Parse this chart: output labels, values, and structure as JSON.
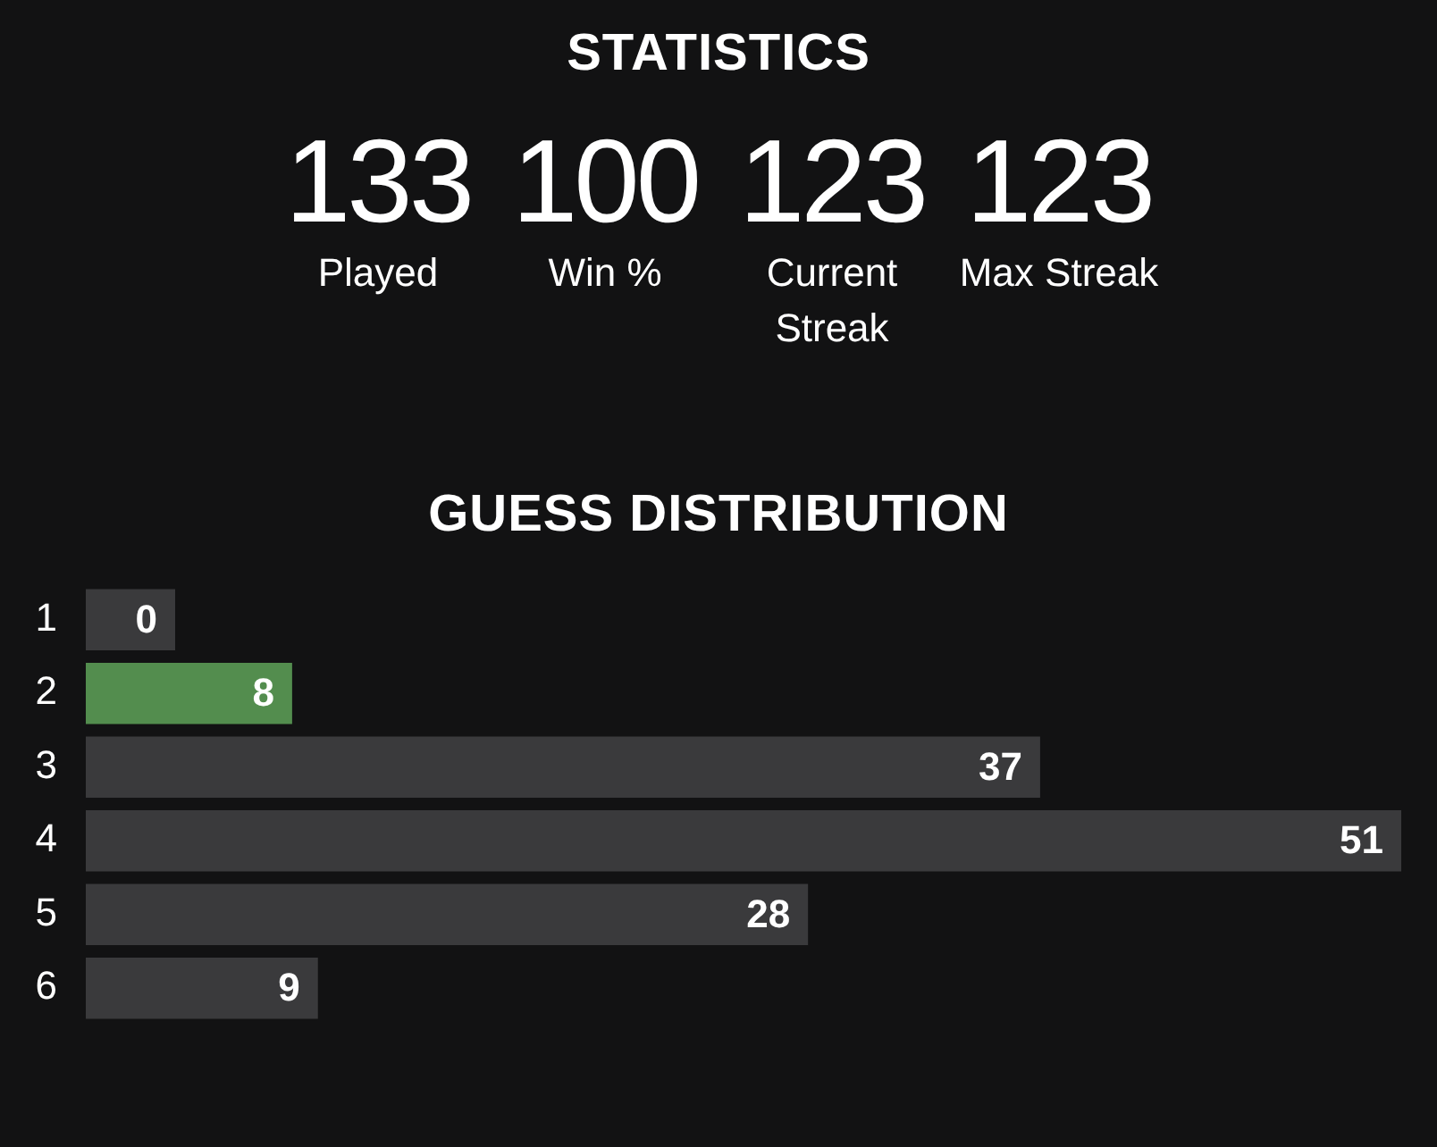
{
  "chart_data": [
    {
      "type": "other",
      "title": "STATISTICS",
      "categories": [
        "Played",
        "Win %",
        "Current Streak",
        "Max Streak"
      ],
      "values": [
        133,
        100,
        123,
        123
      ],
      "data_labels": true
    },
    {
      "type": "bar",
      "orientation": "horizontal",
      "title": "GUESS DISTRIBUTION",
      "categories": [
        "1",
        "2",
        "3",
        "4",
        "5",
        "6"
      ],
      "values": [
        0,
        8,
        37,
        51,
        28,
        9
      ],
      "colors": [
        "#3a3a3c",
        "#538d4e",
        "#3a3a3c",
        "#3a3a3c",
        "#3a3a3c",
        "#3a3a3c"
      ],
      "data_labels": true
    }
  ]
}
